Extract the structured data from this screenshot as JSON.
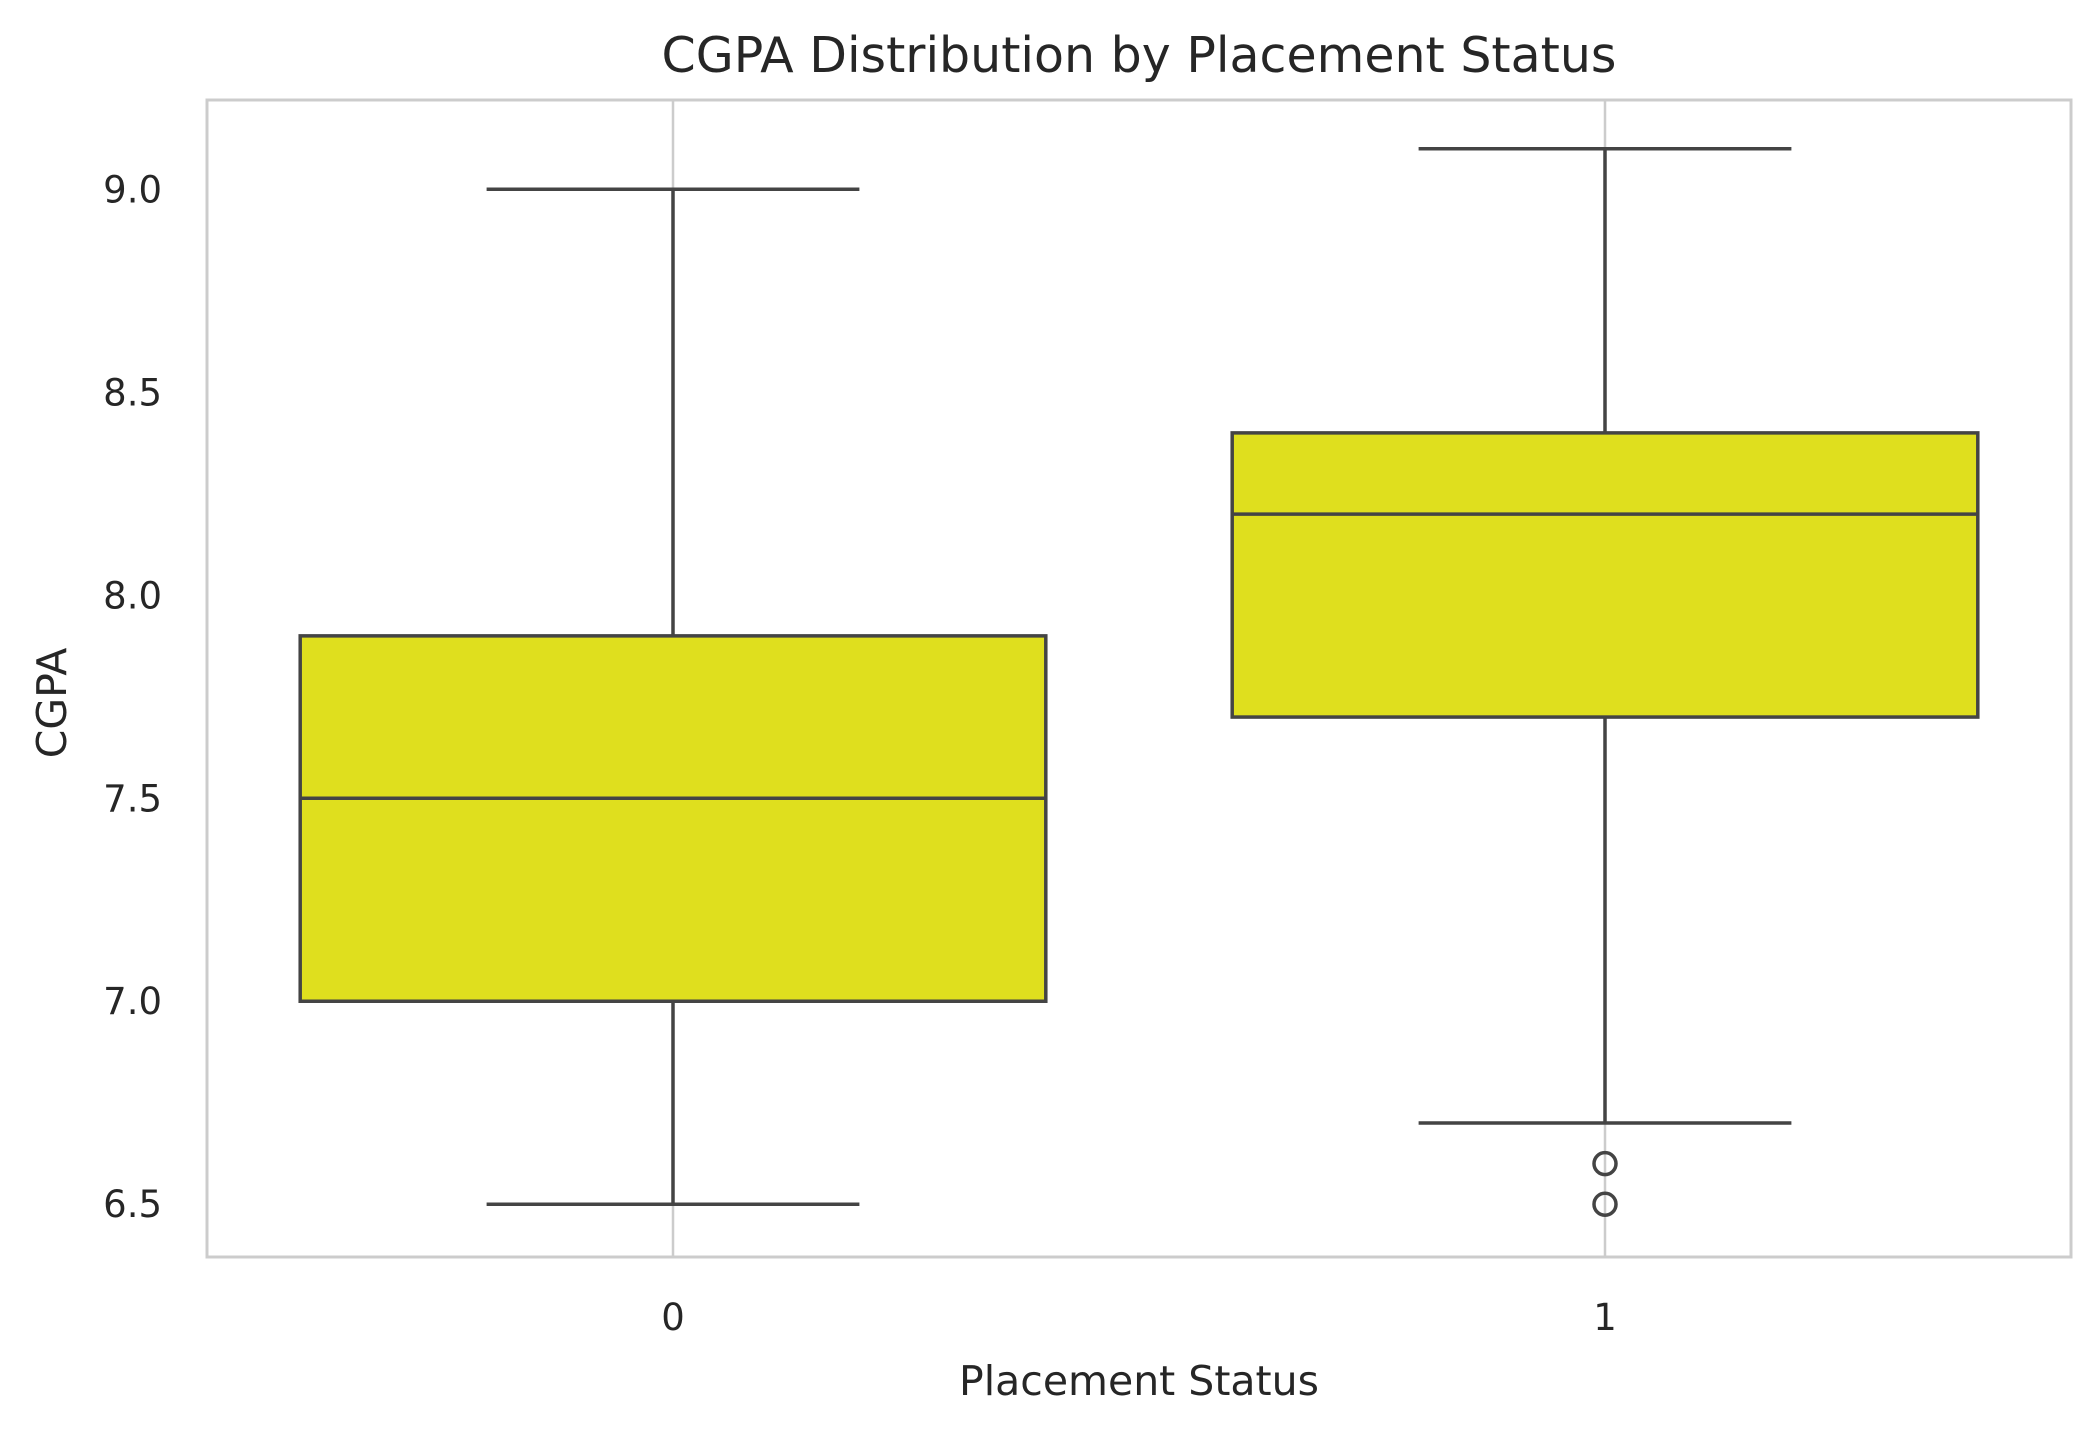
{
  "chart_data": {
    "type": "box",
    "title": "CGPA Distribution by Placement Status",
    "xlabel": "Placement Status",
    "ylabel": "CGPA",
    "categories": [
      "0",
      "1"
    ],
    "ylim": [
      6.37,
      9.22
    ],
    "yticks": [
      6.5,
      7.0,
      7.5,
      8.0,
      8.5,
      9.0
    ],
    "ytick_labels": [
      "6.5",
      "7.0",
      "7.5",
      "8.0",
      "8.5",
      "9.0"
    ],
    "grid": true,
    "box_color": "#dfdf1e",
    "line_color": "#444444",
    "boxes": [
      {
        "category": "0",
        "whisker_low": 6.5,
        "q1": 7.0,
        "median": 7.5,
        "q3": 7.9,
        "whisker_high": 9.0,
        "outliers": []
      },
      {
        "category": "1",
        "whisker_low": 6.7,
        "q1": 7.7,
        "median": 8.2,
        "q3": 8.4,
        "whisker_high": 9.1,
        "outliers": [
          6.6,
          6.5
        ]
      }
    ]
  }
}
